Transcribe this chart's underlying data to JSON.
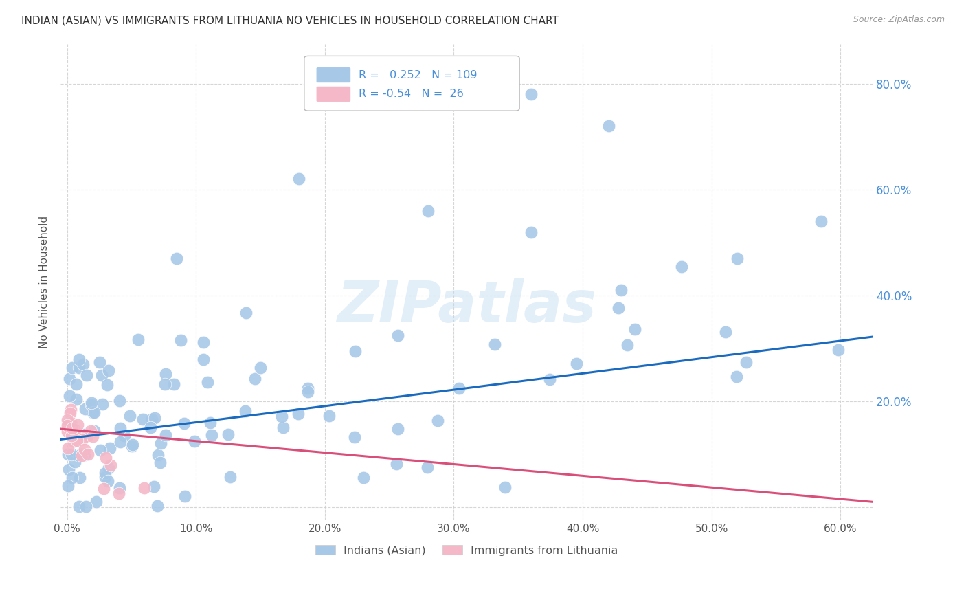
{
  "title": "INDIAN (ASIAN) VS IMMIGRANTS FROM LITHUANIA NO VEHICLES IN HOUSEHOLD CORRELATION CHART",
  "source": "Source: ZipAtlas.com",
  "ylabel": "No Vehicles in Household",
  "r_blue": 0.252,
  "n_blue": 109,
  "r_pink": -0.54,
  "n_pink": 26,
  "xlim": [
    -0.005,
    0.625
  ],
  "ylim": [
    -0.025,
    0.875
  ],
  "xtick_vals": [
    0.0,
    0.1,
    0.2,
    0.3,
    0.4,
    0.5,
    0.6
  ],
  "ytick_vals": [
    0.0,
    0.2,
    0.4,
    0.6,
    0.8
  ],
  "right_ytick_labels": [
    "",
    "20.0%",
    "40.0%",
    "60.0%",
    "80.0%"
  ],
  "xtick_labels": [
    "0.0%",
    "10.0%",
    "20.0%",
    "30.0%",
    "40.0%",
    "50.0%",
    "60.0%"
  ],
  "blue_color": "#a8c8e8",
  "blue_line_color": "#1a6bbf",
  "pink_color": "#f4b8c8",
  "pink_line_color": "#d94f7a",
  "watermark": "ZIPatlas",
  "legend_blue": "Indians (Asian)",
  "legend_pink": "Immigrants from Lithuania",
  "blue_trend_start": 0.128,
  "blue_trend_end": 0.322,
  "pink_trend_start": 0.148,
  "pink_trend_end": 0.01
}
